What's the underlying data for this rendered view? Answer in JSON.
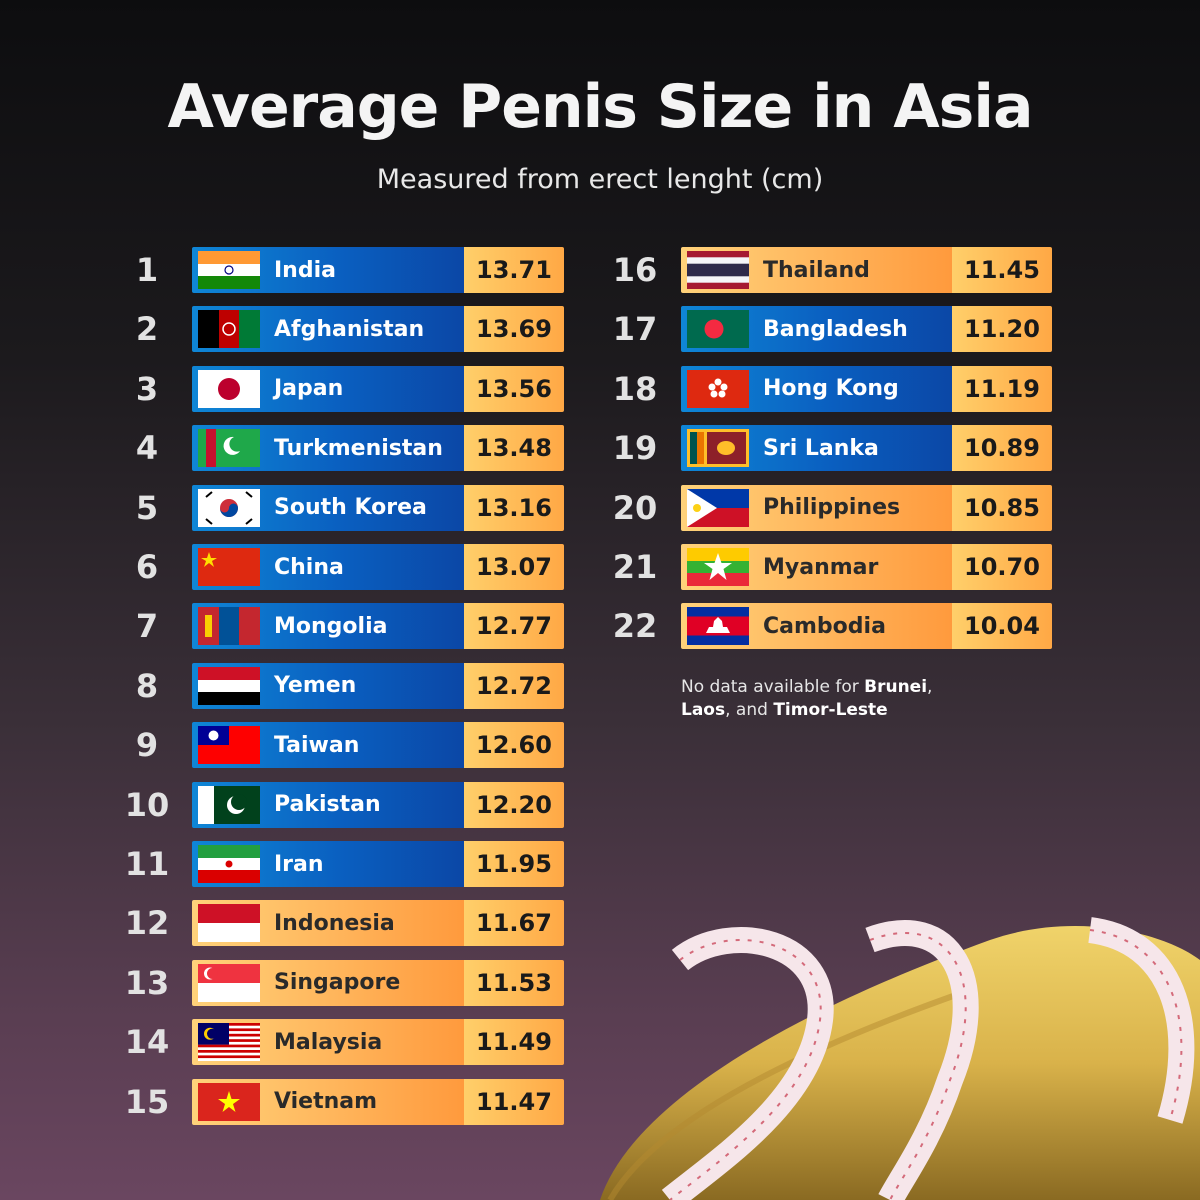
{
  "title": "Average Penis Size in Asia",
  "subtitle": "Measured from erect lenght (cm)",
  "note": {
    "prefix": "No data available for ",
    "country1": "Brunei",
    "sep1": ",",
    "country2": "Laos",
    "sep2": ", and ",
    "country3": "Timor-Leste"
  },
  "colors": {
    "blue_bar": "#0a5fc0",
    "orange_bar": "#ffb45a",
    "value_box": "#ffb84f"
  },
  "chart_data": {
    "type": "bar",
    "title": "Average Penis Size in Asia",
    "subtitle": "Measured from erect lenght (cm)",
    "unit": "cm",
    "rows": [
      {
        "rank": "1",
        "country": "India",
        "value": "13.71",
        "style": "blue",
        "flag": "india"
      },
      {
        "rank": "2",
        "country": "Afghanistan",
        "value": "13.69",
        "style": "blue",
        "flag": "afghanistan"
      },
      {
        "rank": "3",
        "country": "Japan",
        "value": "13.56",
        "style": "blue",
        "flag": "japan"
      },
      {
        "rank": "4",
        "country": "Turkmenistan",
        "value": "13.48",
        "style": "blue",
        "flag": "turkmenistan"
      },
      {
        "rank": "5",
        "country": "South Korea",
        "value": "13.16",
        "style": "blue",
        "flag": "south-korea"
      },
      {
        "rank": "6",
        "country": "China",
        "value": "13.07",
        "style": "blue",
        "flag": "china"
      },
      {
        "rank": "7",
        "country": "Mongolia",
        "value": "12.77",
        "style": "blue",
        "flag": "mongolia"
      },
      {
        "rank": "8",
        "country": "Yemen",
        "value": "12.72",
        "style": "blue",
        "flag": "yemen"
      },
      {
        "rank": "9",
        "country": "Taiwan",
        "value": "12.60",
        "style": "blue",
        "flag": "taiwan"
      },
      {
        "rank": "10",
        "country": "Pakistan",
        "value": "12.20",
        "style": "blue",
        "flag": "pakistan"
      },
      {
        "rank": "11",
        "country": "Iran",
        "value": "11.95",
        "style": "blue",
        "flag": "iran"
      },
      {
        "rank": "12",
        "country": "Indonesia",
        "value": "11.67",
        "style": "orange",
        "flag": "indonesia"
      },
      {
        "rank": "13",
        "country": "Singapore",
        "value": "11.53",
        "style": "orange",
        "flag": "singapore"
      },
      {
        "rank": "14",
        "country": "Malaysia",
        "value": "11.49",
        "style": "orange",
        "flag": "malaysia"
      },
      {
        "rank": "15",
        "country": "Vietnam",
        "value": "11.47",
        "style": "orange",
        "flag": "vietnam"
      },
      {
        "rank": "16",
        "country": "Thailand",
        "value": "11.45",
        "style": "orange",
        "flag": "thailand"
      },
      {
        "rank": "17",
        "country": "Bangladesh",
        "value": "11.20",
        "style": "blue",
        "flag": "bangladesh"
      },
      {
        "rank": "18",
        "country": "Hong Kong",
        "value": "11.19",
        "style": "blue",
        "flag": "hong-kong"
      },
      {
        "rank": "19",
        "country": "Sri Lanka",
        "value": "10.89",
        "style": "blue",
        "flag": "sri-lanka"
      },
      {
        "rank": "20",
        "country": "Philippines",
        "value": "10.85",
        "style": "orange",
        "flag": "philippines"
      },
      {
        "rank": "21",
        "country": "Myanmar",
        "value": "10.70",
        "style": "orange",
        "flag": "myanmar"
      },
      {
        "rank": "22",
        "country": "Cambodia",
        "value": "10.04",
        "style": "orange",
        "flag": "cambodia"
      }
    ]
  }
}
